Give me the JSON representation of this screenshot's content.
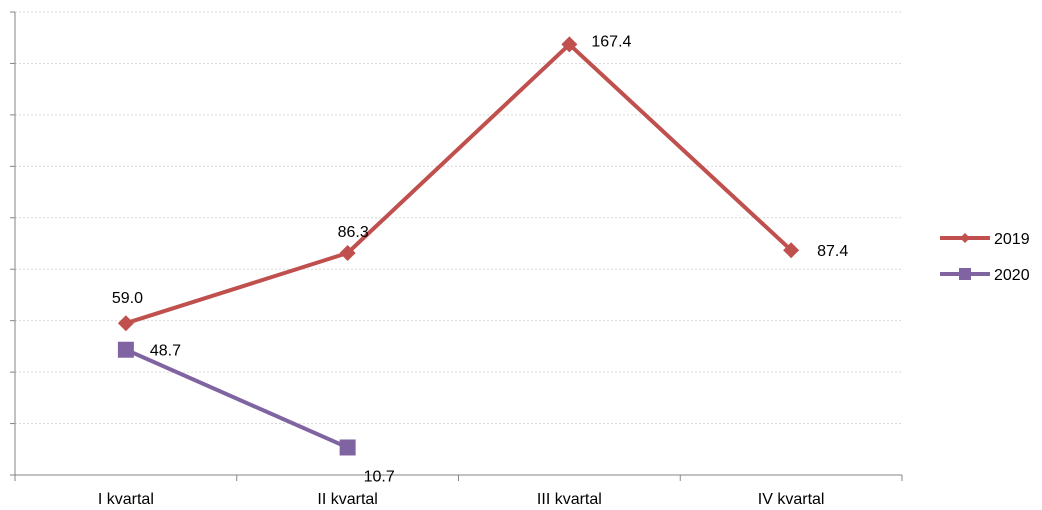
{
  "chart_data": {
    "type": "line",
    "categories": [
      "I kvartal",
      "II kvartal",
      "III  kvartal",
      "IV kvartal"
    ],
    "series": [
      {
        "name": "2019",
        "values": [
          59.0,
          86.3,
          167.4,
          87.4
        ],
        "labels": [
          "59.0",
          "86.3",
          "167.4",
          "87.4"
        ],
        "color": "#c0504d",
        "marker": "diamond"
      },
      {
        "name": "2020",
        "values": [
          48.7,
          10.7,
          null,
          null
        ],
        "labels": [
          "48.7",
          "10.7",
          null,
          null
        ],
        "color": "#8064a2",
        "marker": "square"
      }
    ],
    "ylim": [
      0,
      180
    ],
    "grid": true,
    "gridline_color": "#d9d9d9",
    "legend_position": "right"
  }
}
